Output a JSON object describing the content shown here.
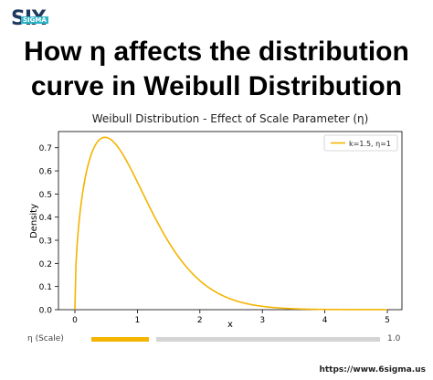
{
  "brand": {
    "logo_text": "SIX",
    "logo_sub": "SIGMA"
  },
  "heading": {
    "line1": "How η affects the distribution",
    "line2": "curve in Weibull Distribution"
  },
  "chart_data": {
    "type": "line",
    "title": "Weibull Distribution - Effect of Scale Parameter (η)",
    "xlabel": "x",
    "ylabel": "Density",
    "xlim": [
      0,
      5
    ],
    "ylim": [
      0,
      0.77
    ],
    "xticks": [
      0,
      1,
      2,
      3,
      4,
      5
    ],
    "yticks": [
      0.0,
      0.1,
      0.2,
      0.3,
      0.4,
      0.5,
      0.6,
      0.7
    ],
    "legend_position": "top-right",
    "grid": false,
    "series": [
      {
        "name": "k=1.5, η=1",
        "color": "#f4b400",
        "k": 1.5,
        "eta": 1
      }
    ]
  },
  "slider": {
    "label": "η (Scale)",
    "value": "1.0",
    "fill_fraction": 0.2,
    "color": "#f4b400"
  },
  "footer": {
    "url": "https://www.6sigma.us"
  }
}
